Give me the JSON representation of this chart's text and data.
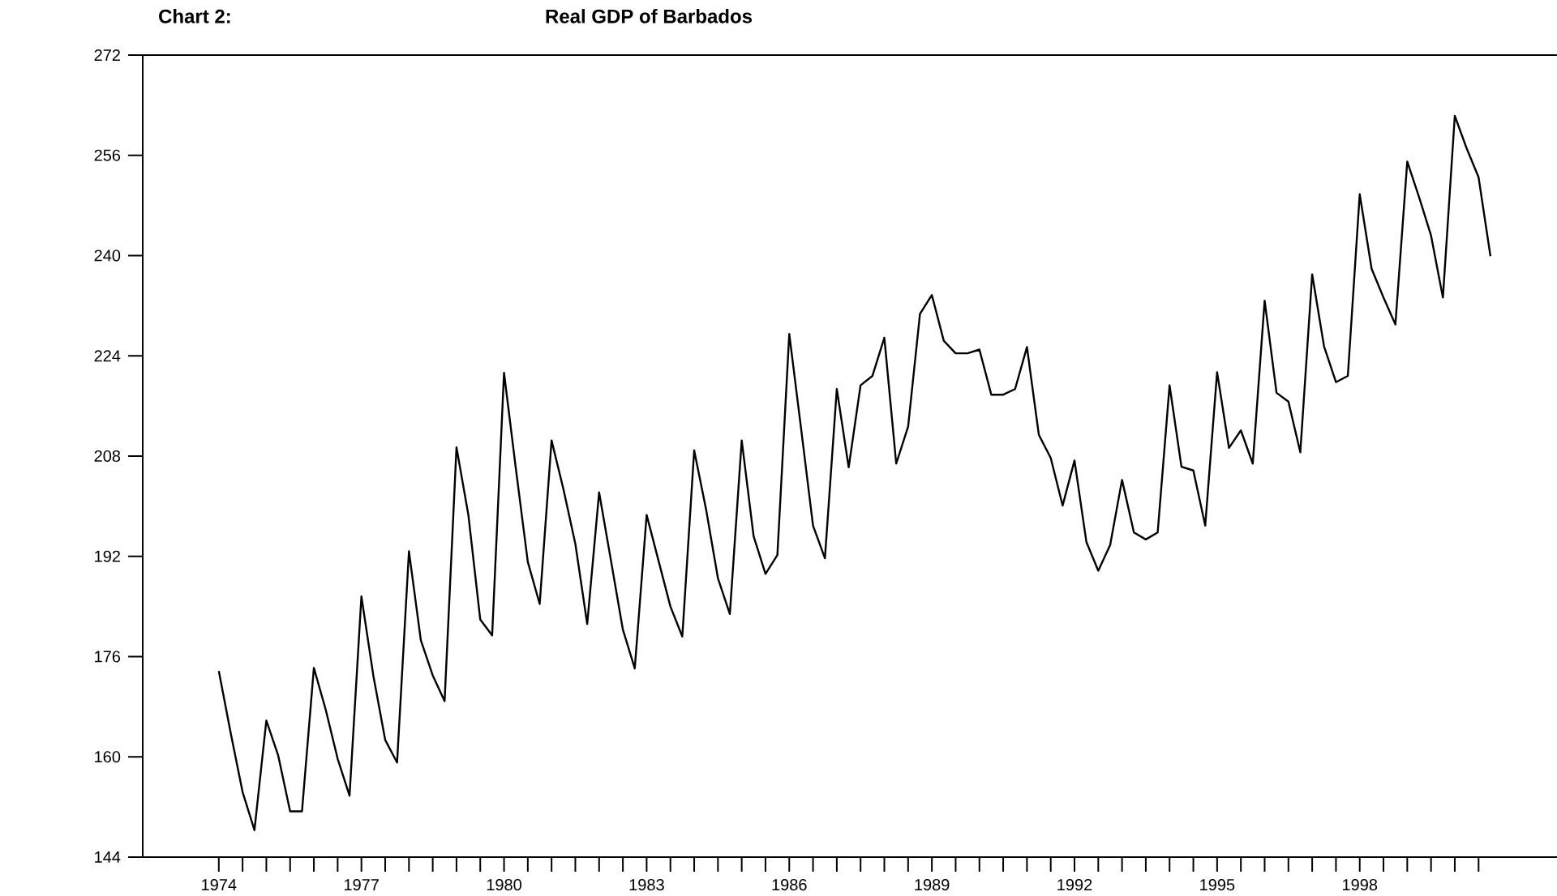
{
  "chart_data": {
    "type": "line",
    "title": "Real GDP of Barbados",
    "annotations": [
      "Chart 2:"
    ],
    "color": "#000000",
    "x": [
      1974,
      1974.25,
      1974.5,
      1974.75,
      1975,
      1975.25,
      1975.5,
      1975.75,
      1976,
      1976.25,
      1976.5,
      1976.75,
      1977,
      1977.25,
      1977.5,
      1977.75,
      1978,
      1978.25,
      1978.5,
      1978.75,
      1979,
      1979.25,
      1979.5,
      1979.75,
      1980,
      1980.25,
      1980.5,
      1980.75,
      1981,
      1981.25,
      1981.5,
      1981.75,
      1982,
      1982.25,
      1982.5,
      1982.75,
      1983,
      1983.25,
      1983.5,
      1983.75,
      1984,
      1984.25,
      1984.5,
      1984.75,
      1985,
      1985.25,
      1985.5,
      1985.75,
      1986,
      1986.25,
      1986.5,
      1986.75,
      1987,
      1987.25,
      1987.5,
      1987.75,
      1988,
      1988.25,
      1988.5,
      1988.75,
      1989,
      1989.25,
      1989.5,
      1989.75,
      1990,
      1990.25,
      1990.5,
      1990.75,
      1991,
      1991.25,
      1991.5,
      1991.75,
      1992,
      1992.25,
      1992.5,
      1992.75,
      1993,
      1993.25,
      1993.5,
      1993.75,
      1994,
      1994.25,
      1994.5,
      1994.75,
      1995,
      1995.25,
      1995.5,
      1995.75,
      1996,
      1996.25,
      1996.5,
      1996.75,
      1997,
      1997.25,
      1997.5,
      1997.75,
      1998,
      1998.25,
      1998.5,
      1998.75,
      1999,
      1999.25,
      1999.5,
      1999.75,
      2000,
      2000.25,
      2000.5,
      2000.75
    ],
    "values": [
      173.7,
      163.8,
      154.4,
      148.3,
      165.8,
      160.2,
      151.3,
      151.3,
      174.2,
      167.5,
      159.7,
      153.8,
      185.6,
      173.0,
      162.7,
      159.1,
      192.8,
      178.6,
      173.0,
      168.9,
      209.4,
      198.6,
      181.9,
      179.4,
      221.3,
      205.9,
      191.1,
      184.4,
      210.5,
      202.7,
      194.0,
      181.2,
      202.2,
      191.3,
      180.3,
      174.1,
      198.6,
      191.3,
      184.0,
      179.2,
      208.9,
      199.5,
      188.5,
      182.8,
      210.5,
      195.2,
      189.2,
      192.2,
      227.5,
      212.3,
      196.9,
      191.7,
      218.7,
      206.2,
      219.3,
      220.8,
      226.9,
      206.8,
      212.7,
      230.7,
      233.7,
      226.4,
      224.4,
      224.4,
      225.0,
      217.8,
      217.8,
      218.7,
      225.4,
      211.4,
      207.7,
      200.1,
      207.3,
      194.3,
      189.7,
      193.8,
      204.2,
      195.8,
      194.7,
      195.8,
      219.3,
      206.3,
      205.7,
      196.9,
      221.4,
      209.3,
      212.1,
      206.8,
      232.8,
      218.1,
      216.7,
      208.6,
      237.0,
      225.5,
      219.8,
      220.8,
      249.8,
      237.9,
      233.3,
      229.0,
      255.0,
      249.3,
      243.2,
      233.3,
      262.3,
      257.1,
      252.5,
      239.9
    ],
    "xlim": [
      1972.4,
      2002.15
    ],
    "ylim": [
      144,
      272
    ],
    "xticks": [
      1974,
      {
        "value": 1974.5,
        "label": null
      },
      {
        "value": 1975,
        "label": null
      },
      {
        "value": 1975.5,
        "label": null
      },
      {
        "value": 1976,
        "label": null
      },
      {
        "value": 1976.5,
        "label": null
      },
      1977,
      {
        "value": 1977.5,
        "label": null
      },
      {
        "value": 1978,
        "label": null
      },
      {
        "value": 1978.5,
        "label": null
      },
      {
        "value": 1979,
        "label": null
      },
      {
        "value": 1979.5,
        "label": null
      },
      1980,
      {
        "value": 1980.5,
        "label": null
      },
      {
        "value": 1981,
        "label": null
      },
      {
        "value": 1981.5,
        "label": null
      },
      {
        "value": 1982,
        "label": null
      },
      {
        "value": 1982.5,
        "label": null
      },
      1983,
      {
        "value": 1983.5,
        "label": null
      },
      {
        "value": 1984,
        "label": null
      },
      {
        "value": 1984.5,
        "label": null
      },
      {
        "value": 1985,
        "label": null
      },
      {
        "value": 1985.5,
        "label": null
      },
      1986,
      {
        "value": 1986.5,
        "label": null
      },
      {
        "value": 1987,
        "label": null
      },
      {
        "value": 1987.5,
        "label": null
      },
      {
        "value": 1988,
        "label": null
      },
      {
        "value": 1988.5,
        "label": null
      },
      1989,
      {
        "value": 1989.5,
        "label": null
      },
      {
        "value": 1990,
        "label": null
      },
      {
        "value": 1990.5,
        "label": null
      },
      {
        "value": 1991,
        "label": null
      },
      {
        "value": 1991.5,
        "label": null
      },
      1992,
      {
        "value": 1992.5,
        "label": null
      },
      {
        "value": 1993,
        "label": null
      },
      {
        "value": 1993.5,
        "label": null
      },
      {
        "value": 1994,
        "label": null
      },
      {
        "value": 1994.5,
        "label": null
      },
      1995,
      {
        "value": 1995.5,
        "label": null
      },
      {
        "value": 1996,
        "label": null
      },
      {
        "value": 1996.5,
        "label": null
      },
      {
        "value": 1997,
        "label": null
      },
      {
        "value": 1997.5,
        "label": null
      },
      1998,
      {
        "value": 1998.5,
        "label": null
      },
      {
        "value": 1999,
        "label": null
      },
      {
        "value": 1999.5,
        "label": null
      },
      {
        "value": 2000,
        "label": null
      },
      {
        "value": 2000.5,
        "label": null
      }
    ],
    "yticks": [
      144,
      160,
      176,
      192,
      208,
      224,
      240,
      256,
      272
    ]
  }
}
